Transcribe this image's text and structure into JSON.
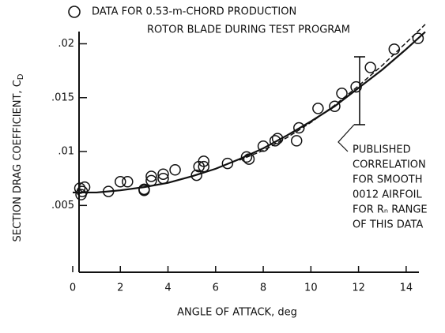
{
  "chart_data": {
    "type": "scatter",
    "legend": "DATA FOR 0.53-m-CHORD PRODUCTION",
    "legend_line2": "ROTOR BLADE DURING TEST PROGRAM",
    "xlabel": "ANGLE OF ATTACK, deg",
    "ylabel": "SECTION DRAG COEFFICIENT, C",
    "ylabel_sub": "D",
    "annotation": [
      "PUBLISHED",
      "CORRELATION",
      "FOR SMOOTH",
      "0012 AIRFOIL",
      "FOR Rₙ RANGE",
      "OF THIS DATA"
    ],
    "xlim": [
      0,
      15
    ],
    "ylim": [
      -0.0012,
      0.0215
    ],
    "xticks": [
      0,
      2,
      4,
      6,
      8,
      10,
      12,
      14
    ],
    "yticks": [
      {
        "value": 0.005,
        "label": ".005"
      },
      {
        "value": 0.01,
        "label": ".01"
      },
      {
        "value": 0.015,
        "label": ".015"
      },
      {
        "value": 0.02,
        "label": ".02"
      }
    ],
    "x": [
      0.3,
      0.35,
      0.4,
      0.5,
      1.5,
      2,
      2.3,
      3,
      3,
      3.3,
      3.3,
      3.8,
      3.8,
      4.3,
      5.2,
      5.3,
      5.5,
      5.5,
      6.5,
      7.3,
      7.4,
      8,
      8.5,
      8.6,
      9.4,
      9.5,
      10.3,
      11,
      11.3,
      11.9,
      12.5,
      13.5,
      14.5
    ],
    "values": [
      0.0066,
      0.006,
      0.0063,
      0.0067,
      0.0063,
      0.0072,
      0.0072,
      0.0064,
      0.0065,
      0.0077,
      0.0073,
      0.0079,
      0.0075,
      0.0083,
      0.0078,
      0.0086,
      0.0086,
      0.0091,
      0.0089,
      0.0095,
      0.0093,
      0.0105,
      0.011,
      0.0112,
      0.011,
      0.0122,
      0.014,
      0.0142,
      0.0154,
      0.016,
      0.0178,
      0.0195,
      0.0205
    ],
    "curves": [
      {
        "style": "solid",
        "x": [
          0,
          1,
          2,
          3,
          4,
          5,
          6,
          7,
          8,
          9,
          10,
          11,
          12,
          13,
          14,
          14.8
        ],
        "values": [
          0.0062,
          0.0062,
          0.0064,
          0.0067,
          0.0071,
          0.0077,
          0.0084,
          0.0093,
          0.0103,
          0.0115,
          0.0128,
          0.0142,
          0.0159,
          0.0176,
          0.0195,
          0.0211
        ]
      },
      {
        "style": "dashed",
        "x": [
          7,
          8,
          9,
          10,
          11,
          12,
          13,
          14,
          14.8
        ],
        "values": [
          0.0092,
          0.0101,
          0.0113,
          0.0127,
          0.0143,
          0.0161,
          0.018,
          0.0201,
          0.0218
        ]
      }
    ]
  }
}
